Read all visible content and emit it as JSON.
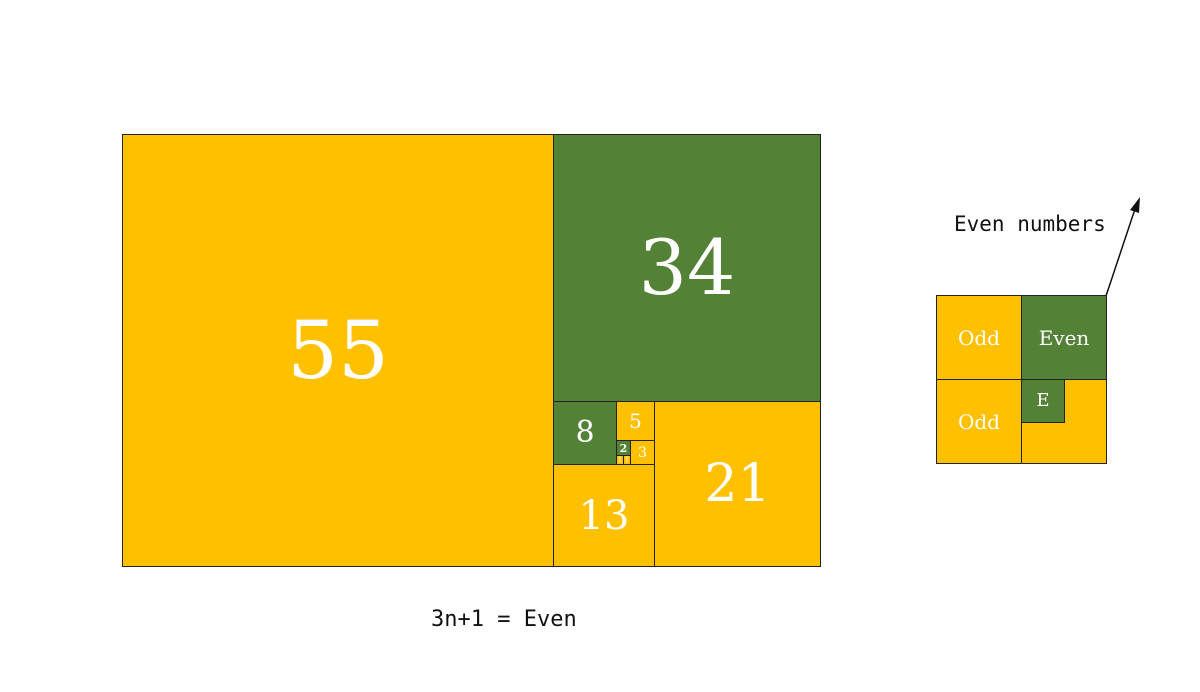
{
  "colors": {
    "odd": "#FFC000",
    "even": "#538135"
  },
  "spiral": {
    "sq55": "55",
    "sq34": "34",
    "sq21": "21",
    "sq13": "13",
    "sq8": "8",
    "sq5": "5",
    "sq3": "3",
    "sq2": "2",
    "sq1a": "1",
    "sq1b": "1"
  },
  "caption": "3n+1 = Even",
  "legend": {
    "title": "Even numbers",
    "top_left": "Odd",
    "top_right": "Even",
    "bottom_left": "Odd",
    "inner": "E"
  }
}
